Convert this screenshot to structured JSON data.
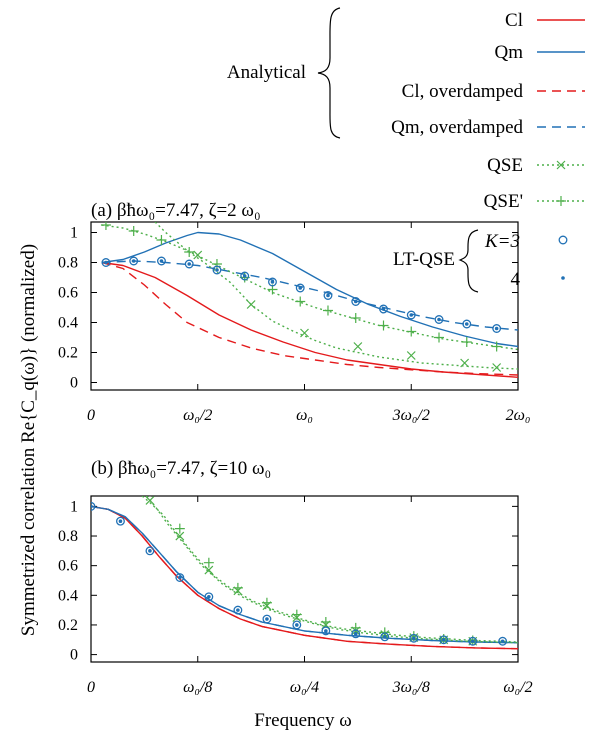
{
  "legend": {
    "group_label": "Analytical",
    "entries": [
      {
        "label": "Cl",
        "color": "#e41a1c",
        "style": "solid"
      },
      {
        "label": "Qm",
        "color": "#2171b5",
        "style": "solid"
      },
      {
        "label": "Cl, overdamped",
        "color": "#e41a1c",
        "style": "dashed"
      },
      {
        "label": "Qm, overdamped",
        "color": "#2171b5",
        "style": "dashed"
      },
      {
        "label": "QSE",
        "color": "#4daf4a",
        "style": "dotted-x"
      },
      {
        "label": "QSE'",
        "color": "#4daf4a",
        "style": "dotted-plus"
      }
    ],
    "ltqse": {
      "label": "LT-QSE",
      "k_label": "K=3",
      "k_second": "4",
      "color": "#2171b5"
    }
  },
  "y_axis_label": "Symmetrized correlation Re{C_q(ω)} (normalized)",
  "x_axis_label": "Frequency ω",
  "chart_data": [
    {
      "type": "line",
      "panel": "a",
      "title": "(a) βħω₀=7.47, ζ=2 ω₀",
      "x_unit": "omega_0",
      "xlim": [
        0,
        2
      ],
      "ylim": [
        -0.05,
        1.07
      ],
      "yticks": [
        0,
        0.2,
        0.4,
        0.6,
        0.8,
        1
      ],
      "ytick_labels": [
        "0",
        "0.2",
        "0.4",
        "0.6",
        "0.8",
        "1"
      ],
      "xticks": [
        0,
        0.5,
        1,
        1.5,
        2
      ],
      "xtick_labels": [
        "0",
        "ω₀/2",
        "ω₀",
        "3ω₀/2",
        "2ω₀"
      ],
      "series": [
        {
          "name": "Cl",
          "color": "#e41a1c",
          "style": "solid",
          "x": [
            0.05,
            0.15,
            0.3,
            0.45,
            0.6,
            0.75,
            0.9,
            1.05,
            1.2,
            1.35,
            1.5,
            1.65,
            1.8,
            1.95,
            2.0
          ],
          "y": [
            0.8,
            0.78,
            0.7,
            0.58,
            0.45,
            0.35,
            0.27,
            0.2,
            0.15,
            0.12,
            0.09,
            0.07,
            0.055,
            0.04,
            0.035
          ]
        },
        {
          "name": "Qm",
          "color": "#2171b5",
          "style": "solid",
          "x": [
            0.05,
            0.15,
            0.25,
            0.35,
            0.45,
            0.5,
            0.6,
            0.7,
            0.85,
            1.0,
            1.15,
            1.3,
            1.45,
            1.6,
            1.75,
            1.9,
            2.0
          ],
          "y": [
            0.8,
            0.82,
            0.87,
            0.93,
            0.98,
            1.0,
            0.99,
            0.95,
            0.86,
            0.74,
            0.62,
            0.52,
            0.44,
            0.37,
            0.31,
            0.26,
            0.24
          ]
        },
        {
          "name": "Cl, overdamped",
          "color": "#e41a1c",
          "style": "dashed",
          "x": [
            0.05,
            0.15,
            0.25,
            0.35,
            0.45,
            0.6,
            0.75,
            0.9,
            1.05,
            1.2,
            1.35,
            1.5,
            1.65,
            1.8,
            2.0
          ],
          "y": [
            0.8,
            0.76,
            0.65,
            0.52,
            0.4,
            0.3,
            0.23,
            0.18,
            0.15,
            0.12,
            0.1,
            0.085,
            0.07,
            0.06,
            0.05
          ]
        },
        {
          "name": "Qm, overdamped",
          "color": "#2171b5",
          "style": "dashed",
          "x": [
            0.05,
            0.2,
            0.35,
            0.5,
            0.65,
            0.8,
            0.95,
            1.1,
            1.25,
            1.4,
            1.55,
            1.7,
            1.85,
            2.0
          ],
          "y": [
            0.8,
            0.81,
            0.8,
            0.78,
            0.74,
            0.7,
            0.65,
            0.6,
            0.54,
            0.49,
            0.44,
            0.4,
            0.37,
            0.35
          ]
        },
        {
          "name": "QSE",
          "color": "#4daf4a",
          "style": "dotted",
          "marker": "x",
          "x": [
            0.3,
            0.35,
            0.45,
            0.55,
            0.65,
            0.75,
            0.85,
            0.95,
            1.05,
            1.15,
            1.25,
            1.35,
            1.45,
            1.55,
            1.65,
            1.75,
            1.85,
            2.0
          ],
          "y": [
            1.07,
            1.0,
            0.88,
            0.78,
            0.67,
            0.52,
            0.41,
            0.34,
            0.28,
            0.23,
            0.2,
            0.17,
            0.15,
            0.13,
            0.12,
            0.11,
            0.1,
            0.09
          ],
          "marker_x": [
            0.5,
            0.75,
            1.0,
            1.25,
            1.5,
            1.75,
            1.9
          ],
          "marker_y": [
            0.85,
            0.52,
            0.33,
            0.24,
            0.18,
            0.13,
            0.1
          ]
        },
        {
          "name": "QSE'",
          "color": "#4daf4a",
          "style": "dotted",
          "marker": "+",
          "x": [
            0.05,
            0.15,
            0.25,
            0.35,
            0.45,
            0.55,
            0.65,
            0.75,
            0.85,
            0.95,
            1.05,
            1.15,
            1.25,
            1.35,
            1.45,
            1.55,
            1.65,
            1.75,
            1.85,
            2.0
          ],
          "y": [
            1.05,
            1.03,
            0.99,
            0.94,
            0.88,
            0.81,
            0.74,
            0.67,
            0.6,
            0.55,
            0.5,
            0.46,
            0.42,
            0.38,
            0.35,
            0.32,
            0.29,
            0.27,
            0.25,
            0.22
          ],
          "marker_x": [
            0.07,
            0.2,
            0.33,
            0.46,
            0.59,
            0.72,
            0.85,
            0.98,
            1.11,
            1.24,
            1.37,
            1.5,
            1.63,
            1.76,
            1.9
          ],
          "marker_y": [
            1.05,
            1.01,
            0.95,
            0.87,
            0.79,
            0.7,
            0.62,
            0.54,
            0.48,
            0.43,
            0.38,
            0.34,
            0.3,
            0.27,
            0.24
          ]
        },
        {
          "name": "LT-QSE K=3",
          "color": "#2171b5",
          "style": "markers",
          "marker": "o",
          "x": [
            0.07,
            0.2,
            0.33,
            0.46,
            0.59,
            0.72,
            0.85,
            0.98,
            1.11,
            1.24,
            1.37,
            1.5,
            1.63,
            1.76,
            1.9
          ],
          "y": [
            0.8,
            0.81,
            0.81,
            0.79,
            0.75,
            0.71,
            0.67,
            0.63,
            0.58,
            0.54,
            0.49,
            0.45,
            0.42,
            0.39,
            0.36
          ]
        },
        {
          "name": "LT-QSE 4",
          "color": "#2171b5",
          "style": "markers",
          "marker": "dot",
          "x": [
            0.07,
            0.2,
            0.33,
            0.46,
            0.59,
            0.72,
            0.85,
            0.98,
            1.11,
            1.24,
            1.37,
            1.5,
            1.63,
            1.76,
            1.9
          ],
          "y": [
            0.8,
            0.81,
            0.81,
            0.79,
            0.75,
            0.71,
            0.67,
            0.63,
            0.58,
            0.54,
            0.49,
            0.45,
            0.42,
            0.39,
            0.36
          ]
        }
      ]
    },
    {
      "type": "line",
      "panel": "b",
      "title": "(b) βħω₀=7.47, ζ=10 ω₀",
      "x_unit": "omega_0",
      "xlim": [
        0,
        0.5
      ],
      "ylim": [
        -0.05,
        1.07
      ],
      "yticks": [
        0,
        0.2,
        0.4,
        0.6,
        0.8,
        1
      ],
      "ytick_labels": [
        "0",
        "0.2",
        "0.4",
        "0.6",
        "0.8",
        "1"
      ],
      "xticks": [
        0,
        0.125,
        0.25,
        0.375,
        0.5
      ],
      "xtick_labels": [
        "0",
        "ω₀/8",
        "ω₀/4",
        "3ω₀/8",
        "ω₀/2"
      ],
      "series": [
        {
          "name": "Cl",
          "color": "#e41a1c",
          "style": "solid",
          "x": [
            0,
            0.02,
            0.04,
            0.06,
            0.08,
            0.1,
            0.125,
            0.15,
            0.175,
            0.2,
            0.25,
            0.3,
            0.35,
            0.4,
            0.45,
            0.5
          ],
          "y": [
            1.0,
            0.98,
            0.92,
            0.8,
            0.66,
            0.53,
            0.4,
            0.31,
            0.24,
            0.19,
            0.13,
            0.09,
            0.07,
            0.055,
            0.045,
            0.04
          ]
        },
        {
          "name": "Qm",
          "color": "#2171b5",
          "style": "solid",
          "x": [
            0,
            0.02,
            0.04,
            0.06,
            0.08,
            0.1,
            0.125,
            0.15,
            0.175,
            0.2,
            0.25,
            0.3,
            0.35,
            0.4,
            0.45,
            0.5
          ],
          "y": [
            1.0,
            0.98,
            0.93,
            0.82,
            0.69,
            0.56,
            0.42,
            0.33,
            0.27,
            0.22,
            0.16,
            0.13,
            0.11,
            0.095,
            0.085,
            0.08
          ]
        },
        {
          "name": "Cl, overdamped",
          "color": "#e41a1c",
          "style": "dashed",
          "x": [
            0,
            0.02,
            0.04,
            0.06,
            0.08,
            0.1,
            0.125,
            0.15,
            0.175,
            0.2,
            0.25,
            0.3,
            0.35,
            0.4,
            0.45,
            0.5
          ],
          "y": [
            1.0,
            0.98,
            0.92,
            0.8,
            0.66,
            0.53,
            0.4,
            0.31,
            0.24,
            0.19,
            0.13,
            0.09,
            0.07,
            0.055,
            0.045,
            0.04
          ]
        },
        {
          "name": "Qm, overdamped",
          "color": "#2171b5",
          "style": "dashed",
          "x": [
            0,
            0.02,
            0.04,
            0.06,
            0.08,
            0.1,
            0.125,
            0.15,
            0.175,
            0.2,
            0.25,
            0.3,
            0.35,
            0.4,
            0.45,
            0.5
          ],
          "y": [
            1.0,
            0.98,
            0.93,
            0.82,
            0.69,
            0.56,
            0.42,
            0.33,
            0.27,
            0.22,
            0.16,
            0.13,
            0.11,
            0.095,
            0.085,
            0.08
          ]
        },
        {
          "name": "QSE",
          "color": "#4daf4a",
          "style": "dotted",
          "marker": "x",
          "x": [
            0.065,
            0.075,
            0.09,
            0.11,
            0.13,
            0.155,
            0.18,
            0.205,
            0.23,
            0.26,
            0.29,
            0.32,
            0.35,
            0.38,
            0.41,
            0.44,
            0.47,
            0.5
          ],
          "y": [
            1.07,
            1.0,
            0.88,
            0.74,
            0.6,
            0.47,
            0.38,
            0.31,
            0.26,
            0.21,
            0.17,
            0.145,
            0.125,
            0.11,
            0.1,
            0.09,
            0.085,
            0.08
          ],
          "marker_x": [
            0.069,
            0.104,
            0.138,
            0.172,
            0.206,
            0.241,
            0.275,
            0.31,
            0.344,
            0.378,
            0.413,
            0.447
          ],
          "marker_y": [
            1.04,
            0.8,
            0.57,
            0.43,
            0.33,
            0.25,
            0.2,
            0.16,
            0.135,
            0.115,
            0.1,
            0.09
          ]
        },
        {
          "name": "QSE'",
          "color": "#4daf4a",
          "style": "dotted",
          "marker": "+",
          "x": [
            0.06,
            0.07,
            0.085,
            0.1,
            0.12,
            0.14,
            0.165,
            0.19,
            0.215,
            0.24,
            0.27,
            0.3,
            0.33,
            0.36,
            0.39,
            0.42,
            0.45,
            0.48,
            0.5
          ],
          "y": [
            1.07,
            1.02,
            0.94,
            0.82,
            0.68,
            0.55,
            0.44,
            0.36,
            0.3,
            0.25,
            0.2,
            0.17,
            0.15,
            0.13,
            0.115,
            0.105,
            0.095,
            0.09,
            0.085
          ],
          "marker_x": [
            0.069,
            0.104,
            0.138,
            0.172,
            0.206,
            0.241,
            0.275,
            0.31,
            0.344,
            0.378,
            0.413,
            0.447
          ],
          "marker_y": [
            1.1,
            0.85,
            0.62,
            0.45,
            0.35,
            0.27,
            0.22,
            0.18,
            0.15,
            0.125,
            0.105,
            0.095
          ]
        },
        {
          "name": "LT-QSE K=3",
          "color": "#2171b5",
          "style": "markers",
          "marker": "o",
          "x": [
            0,
            0.0345,
            0.069,
            0.104,
            0.138,
            0.172,
            0.206,
            0.241,
            0.275,
            0.31,
            0.344,
            0.378,
            0.413,
            0.447,
            0.482
          ],
          "y": [
            1.0,
            0.9,
            0.7,
            0.52,
            0.39,
            0.3,
            0.24,
            0.2,
            0.16,
            0.14,
            0.12,
            0.11,
            0.1,
            0.09,
            0.09
          ]
        },
        {
          "name": "LT-QSE 4",
          "color": "#2171b5",
          "style": "markers",
          "marker": "dot",
          "x": [
            0,
            0.0345,
            0.069,
            0.104,
            0.138,
            0.172,
            0.206,
            0.241,
            0.275,
            0.31,
            0.344,
            0.378,
            0.413,
            0.447,
            0.482
          ],
          "y": [
            1.0,
            0.9,
            0.7,
            0.52,
            0.39,
            0.3,
            0.24,
            0.2,
            0.16,
            0.14,
            0.12,
            0.11,
            0.1,
            0.09,
            0.09
          ]
        }
      ]
    }
  ]
}
